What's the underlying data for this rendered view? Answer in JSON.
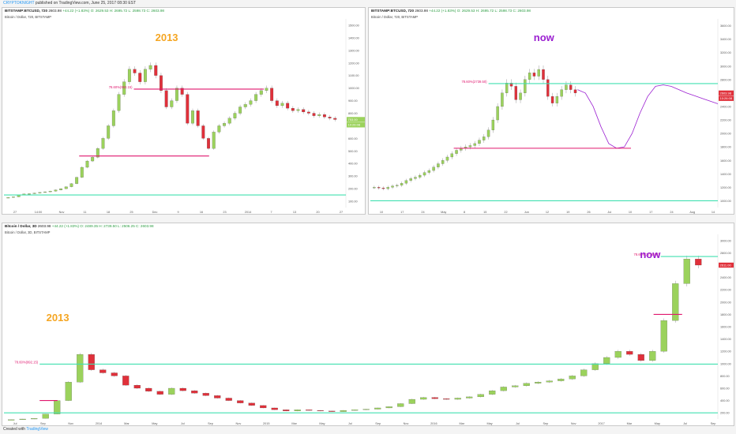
{
  "header": {
    "user": "CRYPTOKNIGHT",
    "published": "published on TradingView.com, June 25, 2017 08:30 EST"
  },
  "panels": [
    {
      "symbol": "BITSTAMP:BTCUSD, 720",
      "price": "2603.98",
      "change": "+44.22 (+1.83%)",
      "ohlc": "O: 2629.53  H: 2695.72  L: 2598.73  C: 2603.98",
      "subtitle": "Bitcoin / Dollar, 720, BITSTAMP",
      "annotation": "2013",
      "annotation_color": "#f5a623",
      "fib_label": "78.60%(992.15)",
      "price_tag": "753.00",
      "price_tag2": "10:26:08"
    },
    {
      "symbol": "BITSTAMP:BTCUSD, 720",
      "price": "2603.98",
      "change": "+44.22 (+1.83%)",
      "ohlc": "O: 2629.53  H: 2695.72  L: 2598.73  C: 2603.98",
      "subtitle": "Bitcoin / Dollar, 720, BITSTAMP",
      "annotation": "now",
      "annotation_color": "#9b1fd1",
      "fib_label": "78.60%(2739.50)",
      "price_tag": "2603.98",
      "price_tag2": "10:26:08"
    },
    {
      "symbol": "Bitcoin / Dollar, 3D",
      "price": "2603.98",
      "change": "+44.22 (+1.83%)",
      "ohlc": "O: 2489.35  H: 2739.50  L: 2506.25  C: 2603.98",
      "subtitle": "Bitcoin / Dollar, 3D, BITSTAMP",
      "annotation": "now",
      "annotation2": "2013",
      "annotation_color": "#9b1fd1",
      "annotation2_color": "#f5a623",
      "fib_label": "78.60%(2739.50)",
      "fib_label2": "78.60%(992.15)",
      "price_tag": "2611.00"
    }
  ],
  "footer": {
    "created": "Created with",
    "brand": "TradingView"
  },
  "colors": {
    "up": "#9bd25c",
    "down": "#e0303a",
    "support": "#40e0b0",
    "fib": "#e0176e",
    "projection": "#9b1fd1"
  },
  "chart_data": [
    {
      "type": "line",
      "title": "Bitcoin / Dollar, 720, BITSTAMP (2013)",
      "x_ticks": [
        "27",
        "14:00",
        "Nov",
        "11",
        "18",
        "25",
        "Dec",
        "9",
        "16",
        "23",
        "2014",
        "7",
        "13",
        "20",
        "27"
      ],
      "y_ticks": [
        "1500.00",
        "1400.00",
        "1300.00",
        "1200.00",
        "1100.00",
        "1000.00",
        "900.00",
        "800.00",
        "700.00",
        "600.00",
        "500.00",
        "400.00",
        "300.00",
        "200.00",
        "100.00"
      ],
      "ylim": [
        50,
        1550
      ],
      "series": [
        {
          "values": [
            130,
            135,
            150,
            158,
            160,
            165,
            170,
            175,
            180,
            190,
            200,
            215,
            240,
            290,
            370,
            420,
            450,
            520,
            600,
            700,
            820,
            950,
            1050,
            1150,
            1120,
            1050,
            1150,
            1180,
            1100,
            980,
            850,
            900,
            1000,
            950,
            720,
            820,
            700,
            600,
            520,
            650,
            700,
            720,
            760,
            800,
            850,
            870,
            900,
            950,
            980,
            1000,
            900,
            860,
            880,
            840,
            820,
            830,
            810,
            800,
            780,
            790,
            770,
            760,
            750
          ]
        }
      ],
      "levels": [
        {
          "label": "78.60%(992.15)",
          "value": 992
        },
        {
          "value": 460
        },
        {
          "value": 150
        }
      ]
    },
    {
      "type": "line",
      "title": "Bitcoin / Dollar, 720, BITSTAMP (now)",
      "x_ticks": [
        "10",
        "17",
        "24",
        "May",
        "8",
        "15",
        "22",
        "Jun",
        "12",
        "19",
        "26",
        "Jul",
        "10",
        "17",
        "24",
        "Aug",
        "14"
      ],
      "y_ticks": [
        "3600.00",
        "3400.00",
        "3200.00",
        "3000.00",
        "2800.00",
        "2600.00",
        "2400.00",
        "2200.00",
        "2000.00",
        "1800.00",
        "1600.00",
        "1400.00",
        "1200.00",
        "1000.00"
      ],
      "ylim": [
        900,
        3700
      ],
      "series": [
        {
          "values": [
            1200,
            1190,
            1180,
            1200,
            1220,
            1230,
            1260,
            1300,
            1330,
            1350,
            1380,
            1420,
            1450,
            1500,
            1550,
            1600,
            1650,
            1700,
            1750,
            1780,
            1800,
            1820,
            1850,
            1900,
            1950,
            2050,
            2200,
            2400,
            2600,
            2750,
            2700,
            2500,
            2600,
            2800,
            2900,
            2850,
            2950,
            2800,
            2550,
            2450,
            2550,
            2650,
            2720,
            2650,
            2600
          ]
        },
        {
          "name": "projection",
          "values": [
            2650,
            2600,
            2400,
            2100,
            1850,
            1780,
            1800,
            2000,
            2300,
            2550,
            2700,
            2720,
            2700,
            2650,
            2600,
            2560,
            2520,
            2480,
            2440
          ]
        }
      ],
      "levels": [
        {
          "label": "78.60%(2739.50)",
          "value": 2740
        },
        {
          "value": 1780
        },
        {
          "value": 1000
        }
      ]
    },
    {
      "type": "line",
      "title": "Bitcoin / Dollar, 3D, BITSTAMP",
      "x_ticks": [
        "Jul",
        "Sep",
        "Nov",
        "2014",
        "Mar",
        "May",
        "Jul",
        "Sep",
        "Nov",
        "2015",
        "Mar",
        "May",
        "Jul",
        "Sep",
        "Nov",
        "2016",
        "Mar",
        "May",
        "Jul",
        "Sep",
        "Nov",
        "2017",
        "Mar",
        "May",
        "Jul",
        "Sep"
      ],
      "y_ticks": [
        "3000.00",
        "2800.00",
        "2600.00",
        "2400.00",
        "2200.00",
        "2000.00",
        "1800.00",
        "1600.00",
        "1400.00",
        "1200.00",
        "1000.00",
        "800.00",
        "600.00",
        "400.00",
        "200.00"
      ],
      "ylim": [
        100,
        3100
      ],
      "series": [
        {
          "values": [
            90,
            100,
            110,
            180,
            400,
            700,
            1150,
            900,
            850,
            800,
            650,
            600,
            550,
            500,
            600,
            560,
            520,
            480,
            440,
            400,
            360,
            320,
            280,
            250,
            230,
            250,
            240,
            230,
            220,
            240,
            250,
            260,
            280,
            300,
            350,
            420,
            450,
            430,
            420,
            440,
            460,
            500,
            560,
            620,
            640,
            680,
            700,
            720,
            750,
            800,
            900,
            1000,
            1100,
            1200,
            1150,
            1050,
            1200,
            1700,
            2300,
            2700,
            2600
          ]
        }
      ],
      "levels": [
        {
          "label": "78.60%(2739.50)",
          "value": 2740
        },
        {
          "value": 1800
        },
        {
          "label": "78.60%(992.15)",
          "value": 992
        },
        {
          "value": 400
        },
        {
          "value": 200
        }
      ]
    }
  ]
}
